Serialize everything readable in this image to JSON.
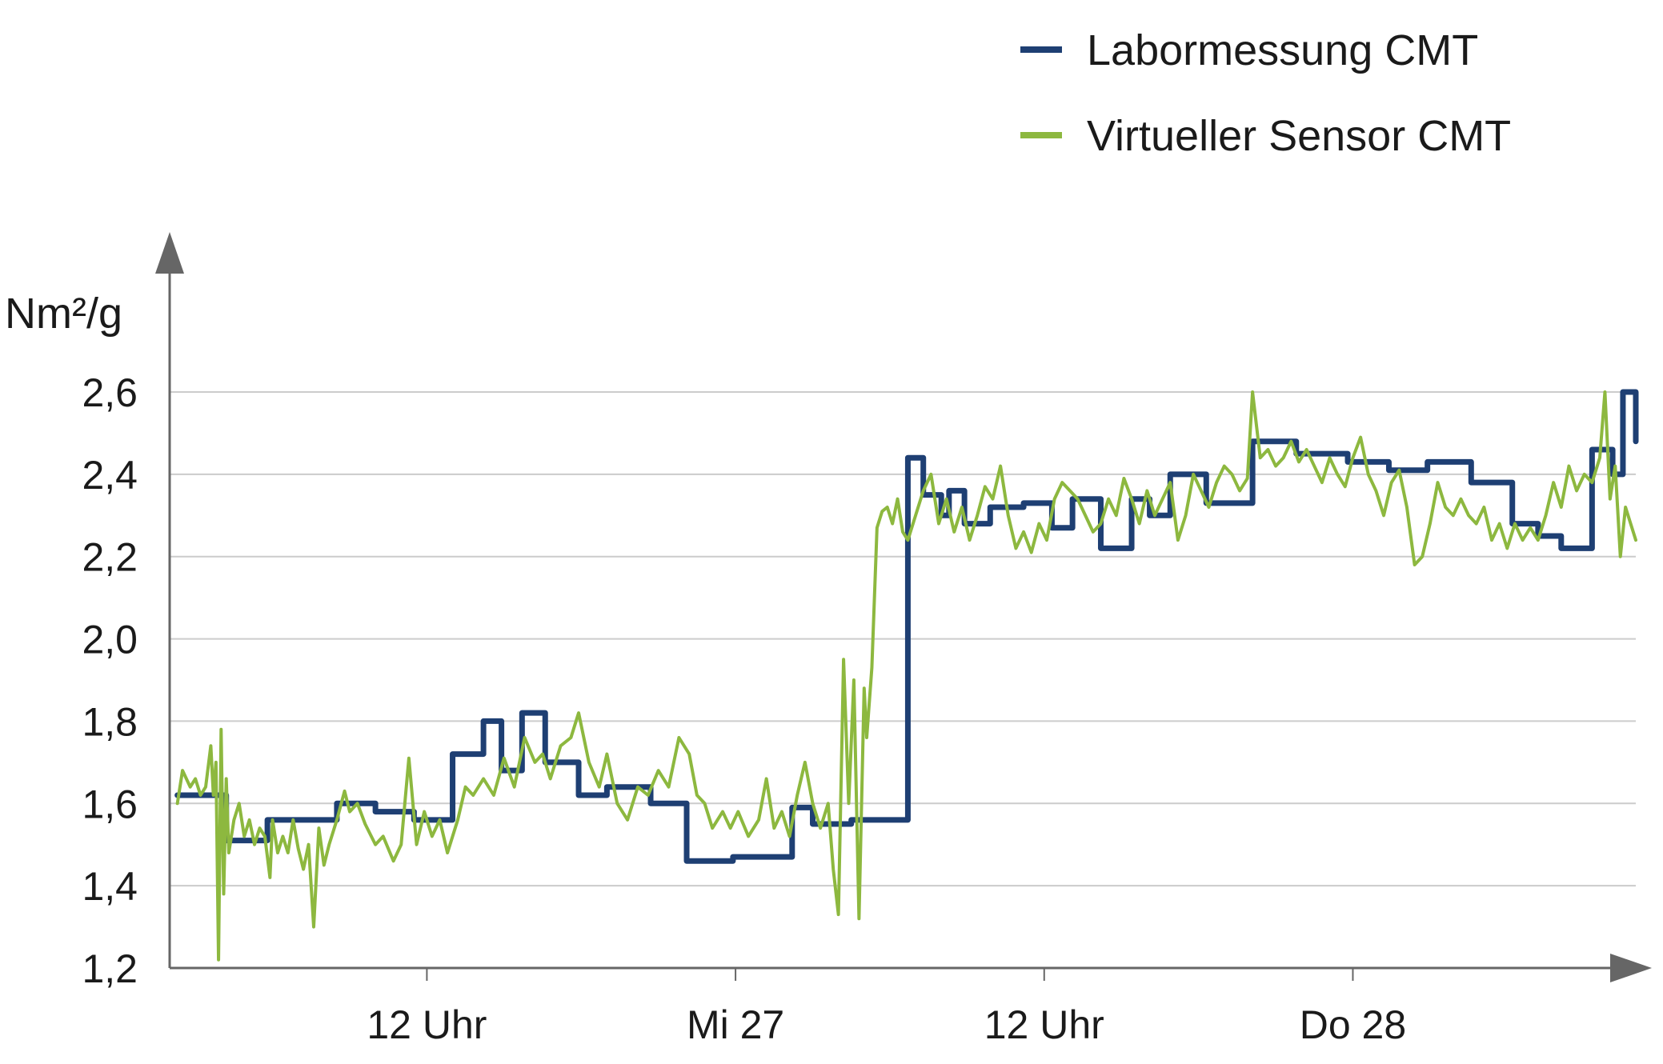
{
  "chart_data": {
    "type": "line",
    "ylabel": "Nm²/g",
    "ylim": [
      1.2,
      2.6
    ],
    "y_ticks": [
      "1,2",
      "1,4",
      "1,6",
      "1,8",
      "2,0",
      "2,2",
      "2,4",
      "2,6"
    ],
    "xlim": [
      0,
      57
    ],
    "x_ticks": [
      {
        "x": 10,
        "label": "12 Uhr"
      },
      {
        "x": 22,
        "label": "Mi 27"
      },
      {
        "x": 34,
        "label": "12 Uhr"
      },
      {
        "x": 46,
        "label": "Do 28"
      }
    ],
    "x_unit": "hours",
    "grid": true,
    "legend_position": "top-right",
    "colors": {
      "lab": "#1e3f73",
      "sensor": "#8db83f",
      "grid": "#cccccc",
      "axis": "#666666"
    },
    "series": [
      {
        "name": "Labormessung CMT",
        "style": "step",
        "points": [
          [
            0.3,
            1.62
          ],
          [
            2.2,
            1.51
          ],
          [
            3.8,
            1.56
          ],
          [
            6.5,
            1.6
          ],
          [
            8.0,
            1.58
          ],
          [
            9.5,
            1.56
          ],
          [
            11.0,
            1.72
          ],
          [
            12.2,
            1.8
          ],
          [
            12.9,
            1.68
          ],
          [
            13.7,
            1.82
          ],
          [
            14.6,
            1.7
          ],
          [
            15.9,
            1.62
          ],
          [
            17.0,
            1.64
          ],
          [
            18.7,
            1.6
          ],
          [
            20.1,
            1.46
          ],
          [
            21.9,
            1.47
          ],
          [
            24.2,
            1.59
          ],
          [
            25.0,
            1.55
          ],
          [
            26.5,
            1.56
          ],
          [
            28.7,
            2.44
          ],
          [
            29.3,
            2.35
          ],
          [
            30.0,
            2.3
          ],
          [
            30.3,
            2.36
          ],
          [
            30.9,
            2.28
          ],
          [
            31.9,
            2.32
          ],
          [
            33.2,
            2.33
          ],
          [
            34.3,
            2.27
          ],
          [
            35.1,
            2.34
          ],
          [
            36.2,
            2.22
          ],
          [
            37.4,
            2.34
          ],
          [
            38.1,
            2.3
          ],
          [
            38.9,
            2.4
          ],
          [
            40.3,
            2.33
          ],
          [
            42.1,
            2.48
          ],
          [
            43.8,
            2.45
          ],
          [
            45.8,
            2.43
          ],
          [
            47.4,
            2.41
          ],
          [
            48.9,
            2.43
          ],
          [
            50.6,
            2.38
          ],
          [
            52.2,
            2.28
          ],
          [
            53.2,
            2.25
          ],
          [
            54.1,
            2.22
          ],
          [
            55.3,
            2.46
          ],
          [
            56.1,
            2.4
          ],
          [
            56.5,
            2.6
          ],
          [
            57.0,
            2.48
          ]
        ]
      },
      {
        "name": "Virtueller Sensor CMT",
        "style": "line",
        "points": [
          [
            0.3,
            1.6
          ],
          [
            0.5,
            1.68
          ],
          [
            0.8,
            1.64
          ],
          [
            1.0,
            1.66
          ],
          [
            1.2,
            1.62
          ],
          [
            1.4,
            1.64
          ],
          [
            1.6,
            1.74
          ],
          [
            1.7,
            1.62
          ],
          [
            1.8,
            1.7
          ],
          [
            1.9,
            1.22
          ],
          [
            2.0,
            1.78
          ],
          [
            2.1,
            1.38
          ],
          [
            2.2,
            1.66
          ],
          [
            2.3,
            1.48
          ],
          [
            2.5,
            1.56
          ],
          [
            2.7,
            1.6
          ],
          [
            2.9,
            1.52
          ],
          [
            3.1,
            1.56
          ],
          [
            3.3,
            1.5
          ],
          [
            3.5,
            1.54
          ],
          [
            3.7,
            1.52
          ],
          [
            3.9,
            1.42
          ],
          [
            4.0,
            1.56
          ],
          [
            4.2,
            1.48
          ],
          [
            4.4,
            1.52
          ],
          [
            4.6,
            1.48
          ],
          [
            4.8,
            1.56
          ],
          [
            5.0,
            1.49
          ],
          [
            5.2,
            1.44
          ],
          [
            5.4,
            1.5
          ],
          [
            5.6,
            1.3
          ],
          [
            5.8,
            1.54
          ],
          [
            6.0,
            1.45
          ],
          [
            6.2,
            1.5
          ],
          [
            6.5,
            1.56
          ],
          [
            6.8,
            1.63
          ],
          [
            7.0,
            1.58
          ],
          [
            7.3,
            1.6
          ],
          [
            7.6,
            1.55
          ],
          [
            8.0,
            1.5
          ],
          [
            8.3,
            1.52
          ],
          [
            8.7,
            1.46
          ],
          [
            9.0,
            1.5
          ],
          [
            9.3,
            1.71
          ],
          [
            9.6,
            1.5
          ],
          [
            9.9,
            1.58
          ],
          [
            10.2,
            1.52
          ],
          [
            10.5,
            1.56
          ],
          [
            10.8,
            1.48
          ],
          [
            11.2,
            1.56
          ],
          [
            11.5,
            1.64
          ],
          [
            11.8,
            1.62
          ],
          [
            12.2,
            1.66
          ],
          [
            12.6,
            1.62
          ],
          [
            13.0,
            1.71
          ],
          [
            13.4,
            1.64
          ],
          [
            13.8,
            1.76
          ],
          [
            14.2,
            1.7
          ],
          [
            14.5,
            1.72
          ],
          [
            14.8,
            1.66
          ],
          [
            15.2,
            1.74
          ],
          [
            15.6,
            1.76
          ],
          [
            15.9,
            1.82
          ],
          [
            16.3,
            1.7
          ],
          [
            16.7,
            1.64
          ],
          [
            17.0,
            1.72
          ],
          [
            17.4,
            1.6
          ],
          [
            17.8,
            1.56
          ],
          [
            18.2,
            1.64
          ],
          [
            18.6,
            1.62
          ],
          [
            19.0,
            1.68
          ],
          [
            19.4,
            1.64
          ],
          [
            19.8,
            1.76
          ],
          [
            20.2,
            1.72
          ],
          [
            20.5,
            1.62
          ],
          [
            20.8,
            1.6
          ],
          [
            21.1,
            1.54
          ],
          [
            21.5,
            1.58
          ],
          [
            21.8,
            1.54
          ],
          [
            22.1,
            1.58
          ],
          [
            22.5,
            1.52
          ],
          [
            22.9,
            1.56
          ],
          [
            23.2,
            1.66
          ],
          [
            23.5,
            1.54
          ],
          [
            23.8,
            1.58
          ],
          [
            24.1,
            1.52
          ],
          [
            24.4,
            1.62
          ],
          [
            24.7,
            1.7
          ],
          [
            25.0,
            1.6
          ],
          [
            25.3,
            1.54
          ],
          [
            25.6,
            1.6
          ],
          [
            25.8,
            1.44
          ],
          [
            26.0,
            1.33
          ],
          [
            26.2,
            1.95
          ],
          [
            26.4,
            1.6
          ],
          [
            26.6,
            1.9
          ],
          [
            26.8,
            1.32
          ],
          [
            27.0,
            1.88
          ],
          [
            27.1,
            1.76
          ],
          [
            27.3,
            1.93
          ],
          [
            27.5,
            2.27
          ],
          [
            27.7,
            2.31
          ],
          [
            27.9,
            2.32
          ],
          [
            28.1,
            2.28
          ],
          [
            28.3,
            2.34
          ],
          [
            28.5,
            2.26
          ],
          [
            28.7,
            2.24
          ],
          [
            29.0,
            2.3
          ],
          [
            29.3,
            2.36
          ],
          [
            29.6,
            2.4
          ],
          [
            29.9,
            2.28
          ],
          [
            30.2,
            2.34
          ],
          [
            30.5,
            2.26
          ],
          [
            30.8,
            2.32
          ],
          [
            31.1,
            2.24
          ],
          [
            31.4,
            2.3
          ],
          [
            31.7,
            2.37
          ],
          [
            32.0,
            2.34
          ],
          [
            32.3,
            2.42
          ],
          [
            32.6,
            2.3
          ],
          [
            32.9,
            2.22
          ],
          [
            33.2,
            2.26
          ],
          [
            33.5,
            2.21
          ],
          [
            33.8,
            2.28
          ],
          [
            34.1,
            2.24
          ],
          [
            34.4,
            2.34
          ],
          [
            34.7,
            2.38
          ],
          [
            35.0,
            2.36
          ],
          [
            35.3,
            2.34
          ],
          [
            35.6,
            2.3
          ],
          [
            35.9,
            2.26
          ],
          [
            36.2,
            2.28
          ],
          [
            36.5,
            2.34
          ],
          [
            36.8,
            2.3
          ],
          [
            37.1,
            2.39
          ],
          [
            37.4,
            2.34
          ],
          [
            37.7,
            2.28
          ],
          [
            38.0,
            2.36
          ],
          [
            38.3,
            2.3
          ],
          [
            38.6,
            2.34
          ],
          [
            38.9,
            2.38
          ],
          [
            39.2,
            2.24
          ],
          [
            39.5,
            2.3
          ],
          [
            39.8,
            2.4
          ],
          [
            40.1,
            2.36
          ],
          [
            40.4,
            2.32
          ],
          [
            40.7,
            2.38
          ],
          [
            41.0,
            2.42
          ],
          [
            41.3,
            2.4
          ],
          [
            41.6,
            2.36
          ],
          [
            41.9,
            2.39
          ],
          [
            42.1,
            2.6
          ],
          [
            42.4,
            2.44
          ],
          [
            42.7,
            2.46
          ],
          [
            43.0,
            2.42
          ],
          [
            43.3,
            2.44
          ],
          [
            43.6,
            2.48
          ],
          [
            43.9,
            2.43
          ],
          [
            44.2,
            2.46
          ],
          [
            44.5,
            2.42
          ],
          [
            44.8,
            2.38
          ],
          [
            45.1,
            2.44
          ],
          [
            45.4,
            2.4
          ],
          [
            45.7,
            2.37
          ],
          [
            46.0,
            2.44
          ],
          [
            46.3,
            2.49
          ],
          [
            46.6,
            2.4
          ],
          [
            46.9,
            2.36
          ],
          [
            47.2,
            2.3
          ],
          [
            47.5,
            2.38
          ],
          [
            47.8,
            2.41
          ],
          [
            48.1,
            2.32
          ],
          [
            48.4,
            2.18
          ],
          [
            48.7,
            2.2
          ],
          [
            49.0,
            2.28
          ],
          [
            49.3,
            2.38
          ],
          [
            49.6,
            2.32
          ],
          [
            49.9,
            2.3
          ],
          [
            50.2,
            2.34
          ],
          [
            50.5,
            2.3
          ],
          [
            50.8,
            2.28
          ],
          [
            51.1,
            2.32
          ],
          [
            51.4,
            2.24
          ],
          [
            51.7,
            2.28
          ],
          [
            52.0,
            2.22
          ],
          [
            52.3,
            2.28
          ],
          [
            52.6,
            2.24
          ],
          [
            52.9,
            2.27
          ],
          [
            53.2,
            2.24
          ],
          [
            53.5,
            2.3
          ],
          [
            53.8,
            2.38
          ],
          [
            54.1,
            2.32
          ],
          [
            54.4,
            2.42
          ],
          [
            54.7,
            2.36
          ],
          [
            55.0,
            2.4
          ],
          [
            55.3,
            2.38
          ],
          [
            55.6,
            2.44
          ],
          [
            55.8,
            2.6
          ],
          [
            56.0,
            2.34
          ],
          [
            56.2,
            2.42
          ],
          [
            56.4,
            2.2
          ],
          [
            56.6,
            2.32
          ],
          [
            56.8,
            2.28
          ],
          [
            57.0,
            2.24
          ]
        ]
      }
    ]
  }
}
